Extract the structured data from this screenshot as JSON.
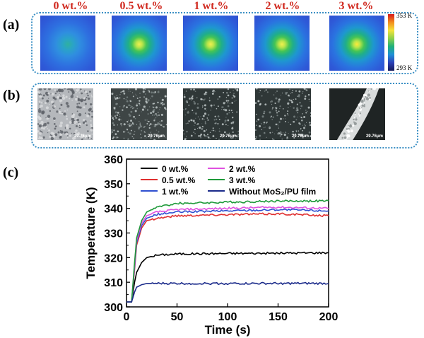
{
  "figure": {
    "panel_labels": [
      "(a)",
      "(b)",
      "(c)"
    ],
    "concentrations": [
      "0 wt.%",
      "0.5 wt.%",
      "1 wt.%",
      "2 wt.%",
      "3 wt.%"
    ],
    "colorbar": {
      "max_label": "353 K",
      "min_label": "293 K",
      "gradient": [
        "#d7191c",
        "#f28c1d",
        "#f5e33b",
        "#8ed04a",
        "#1fb07a",
        "#1f8fd6",
        "#2b3fb8",
        "#161a5c"
      ]
    },
    "thermal_images": [
      {
        "concentration": "0 wt.%",
        "hotspot": 0.35
      },
      {
        "concentration": "0.5 wt.%",
        "hotspot": 0.8
      },
      {
        "concentration": "1 wt.%",
        "hotspot": 0.85
      },
      {
        "concentration": "2 wt.%",
        "hotspot": 0.9
      },
      {
        "concentration": "3 wt.%",
        "hotspot": 1.0
      }
    ],
    "sem_images": [
      {
        "concentration": "0 wt.%",
        "scale_bar": "29.76μm",
        "style": "porous-gray"
      },
      {
        "concentration": "0.5 wt.%",
        "scale_bar": "29.76μm",
        "style": "dark-speckled"
      },
      {
        "concentration": "1 wt.%",
        "scale_bar": "29.76μm",
        "style": "dark-speckled"
      },
      {
        "concentration": "2 wt.%",
        "scale_bar": "29.76μm",
        "style": "dark-speckled"
      },
      {
        "concentration": "3 wt.%",
        "scale_bar": "29.76μm",
        "style": "bright-band"
      }
    ]
  },
  "chart_data": {
    "type": "line",
    "title": "",
    "xlabel": "Time (s)",
    "ylabel": "Temperature (K)",
    "xlim": [
      0,
      200
    ],
    "ylim": [
      300,
      360
    ],
    "xticks": [
      0,
      50,
      100,
      150,
      200
    ],
    "yticks": [
      300,
      310,
      320,
      330,
      340,
      350,
      360
    ],
    "grid": false,
    "legend_position": "top-right",
    "series": [
      {
        "name": "0 wt.%",
        "color": "#000000",
        "x": [
          0,
          5,
          8,
          10,
          15,
          20,
          30,
          50,
          100,
          150,
          200
        ],
        "y": [
          302,
          302,
          310,
          314,
          318,
          320,
          321,
          321.5,
          321.7,
          321.8,
          322
        ]
      },
      {
        "name": "0.5 wt.%",
        "color": "#e03030",
        "x": [
          0,
          5,
          8,
          10,
          15,
          20,
          30,
          50,
          100,
          150,
          200
        ],
        "y": [
          302,
          302,
          315,
          325,
          332,
          335,
          336,
          337,
          337.5,
          337.8,
          337
        ]
      },
      {
        "name": "1 wt.%",
        "color": "#2f4fd0",
        "x": [
          0,
          5,
          8,
          10,
          15,
          20,
          30,
          50,
          100,
          150,
          200
        ],
        "y": [
          302,
          302,
          316,
          326,
          333,
          336,
          337.5,
          338.5,
          339,
          339.5,
          339
        ]
      },
      {
        "name": "2 wt.%",
        "color": "#e050e0",
        "x": [
          0,
          5,
          8,
          10,
          15,
          20,
          30,
          50,
          100,
          150,
          200
        ],
        "y": [
          302,
          302,
          317,
          327,
          334,
          337,
          338.5,
          339.5,
          340,
          340.5,
          340
        ]
      },
      {
        "name": "3 wt.%",
        "color": "#1f9a3a",
        "x": [
          0,
          5,
          8,
          10,
          15,
          20,
          30,
          50,
          100,
          150,
          200
        ],
        "y": [
          302,
          302,
          318,
          328,
          335,
          338.5,
          340.5,
          342,
          342.5,
          343,
          343
        ]
      },
      {
        "name": "Without MoS₂/PU film",
        "color": "#1a2a8a",
        "x": [
          0,
          5,
          8,
          10,
          15,
          20,
          30,
          50,
          100,
          150,
          200
        ],
        "y": [
          302,
          302,
          306,
          308,
          309,
          309.5,
          309.5,
          309.5,
          309.5,
          309.5,
          309.5
        ]
      }
    ]
  }
}
